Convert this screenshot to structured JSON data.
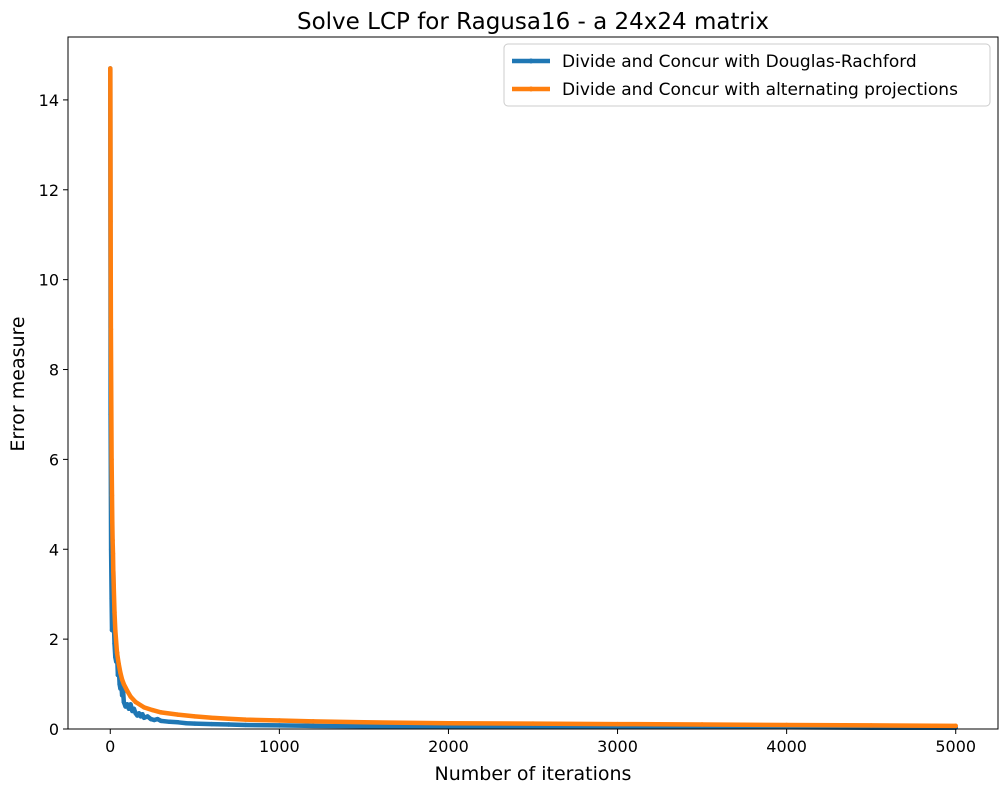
{
  "chart_data": {
    "type": "line",
    "title": "Solve LCP for Ragusa16 - a 24x24 matrix",
    "xlabel": "Number of iterations",
    "ylabel": "Error measure",
    "xlim": [
      -250,
      5250
    ],
    "ylim": [
      0,
      15.4
    ],
    "xticks": [
      0,
      1000,
      2000,
      3000,
      4000,
      5000
    ],
    "yticks": [
      0,
      2,
      4,
      6,
      8,
      10,
      12,
      14
    ],
    "grid": false,
    "legend_position": "top-right",
    "series": [
      {
        "name": "Divide and Concur with Douglas-Rachford",
        "color": "#1f77b4",
        "x": [
          0,
          2,
          5,
          8,
          10,
          12,
          15,
          18,
          20,
          25,
          30,
          35,
          40,
          45,
          50,
          55,
          60,
          65,
          70,
          75,
          80,
          90,
          100,
          110,
          120,
          130,
          140,
          150,
          160,
          170,
          180,
          190,
          200,
          220,
          240,
          260,
          280,
          300,
          350,
          400,
          450,
          500,
          600,
          700,
          800,
          1000,
          1200,
          1500,
          2000,
          2500,
          3000,
          3500,
          4000,
          4500,
          5000
        ],
        "y": [
          14.7,
          7.0,
          4.0,
          2.9,
          2.2,
          3.4,
          2.6,
          3.5,
          2.5,
          1.9,
          1.6,
          1.5,
          1.7,
          1.2,
          1.4,
          1.0,
          0.9,
          1.0,
          0.75,
          0.9,
          0.6,
          0.5,
          0.55,
          0.45,
          0.55,
          0.4,
          0.45,
          0.35,
          0.3,
          0.35,
          0.28,
          0.33,
          0.25,
          0.28,
          0.22,
          0.2,
          0.22,
          0.18,
          0.16,
          0.15,
          0.13,
          0.12,
          0.11,
          0.1,
          0.09,
          0.08,
          0.07,
          0.06,
          0.05,
          0.05,
          0.04,
          0.04,
          0.04,
          0.03,
          0.03
        ]
      },
      {
        "name": "Divide and Concur with alternating projections",
        "color": "#ff7f0e",
        "x": [
          0,
          2,
          4,
          6,
          8,
          10,
          12,
          14,
          16,
          18,
          20,
          25,
          30,
          40,
          50,
          60,
          70,
          80,
          100,
          120,
          150,
          200,
          250,
          300,
          400,
          500,
          600,
          700,
          800,
          1000,
          1200,
          1500,
          2000,
          2500,
          3000,
          3500,
          4000,
          4500,
          5000
        ],
        "y": [
          14.7,
          11.3,
          8.9,
          7.2,
          6.0,
          5.2,
          4.6,
          4.2,
          3.9,
          3.5,
          3.2,
          2.6,
          2.2,
          1.7,
          1.45,
          1.25,
          1.1,
          1.0,
          0.85,
          0.72,
          0.6,
          0.48,
          0.42,
          0.37,
          0.32,
          0.28,
          0.25,
          0.23,
          0.21,
          0.19,
          0.17,
          0.15,
          0.13,
          0.12,
          0.11,
          0.1,
          0.09,
          0.08,
          0.07
        ]
      }
    ]
  }
}
